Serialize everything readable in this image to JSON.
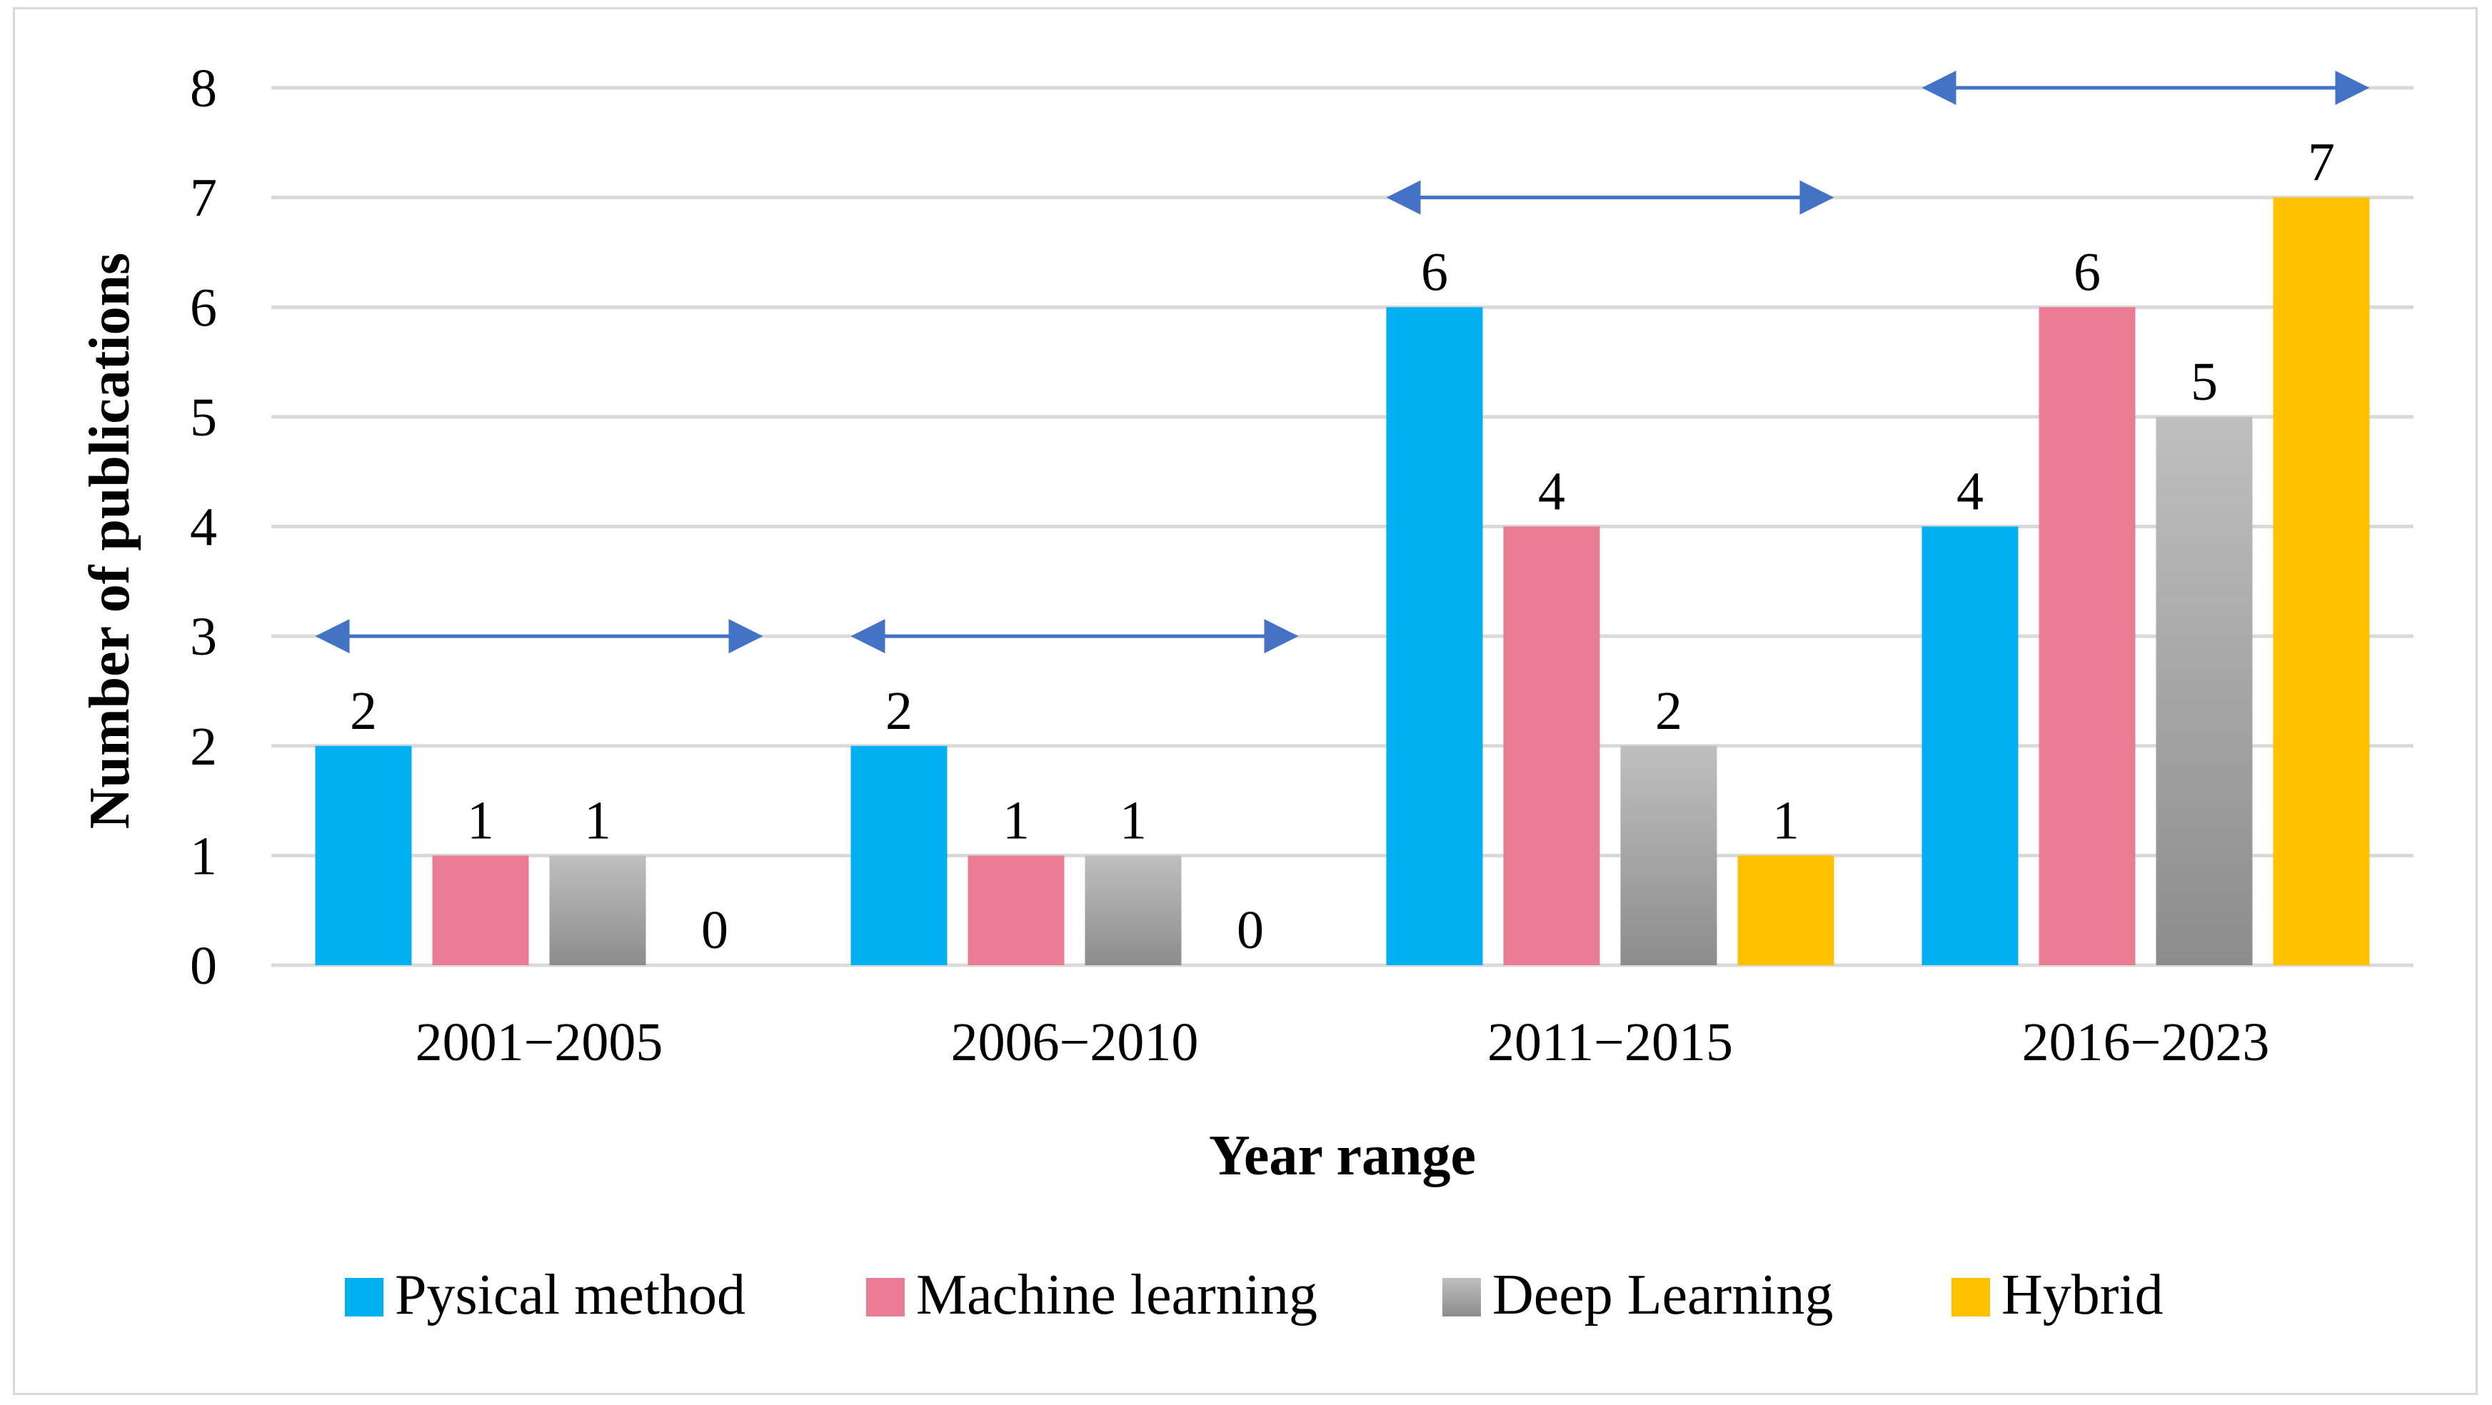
{
  "chart_data": {
    "type": "bar",
    "title": "",
    "xlabel": "Year range",
    "ylabel": "Number of publications",
    "ylim": [
      0,
      8
    ],
    "yticks": [
      "0",
      "1",
      "2",
      "3",
      "4",
      "5",
      "6",
      "7",
      "8"
    ],
    "grid": true,
    "legend_position": "bottom",
    "categories": [
      "2001−2005",
      "2006−2010",
      "2011−2015",
      "2016−2023"
    ],
    "series": [
      {
        "name": "Pysical method",
        "color": "#00B0F0",
        "values": [
          2,
          2,
          6,
          4
        ],
        "labels": [
          "2",
          "2",
          "6",
          "4"
        ]
      },
      {
        "name": "Machine learning",
        "color": "#E97B93",
        "values": [
          1,
          1,
          4,
          6
        ],
        "labels": [
          "1",
          "1",
          "4",
          "6"
        ]
      },
      {
        "name": "Deep Learning",
        "color": "#A6A6A6",
        "values": [
          1,
          1,
          2,
          5
        ],
        "labels": [
          "1",
          "1",
          "2",
          "5"
        ]
      },
      {
        "name": "Hybrid",
        "color": "#FFC000",
        "values": [
          0,
          0,
          1,
          7
        ],
        "labels": [
          "0",
          "0",
          "1",
          "7"
        ]
      }
    ],
    "annotations": [
      {
        "type": "double-arrow",
        "category": "2001−2005",
        "y": 3,
        "color": "#4472C4"
      },
      {
        "type": "double-arrow",
        "category": "2006−2010",
        "y": 3,
        "color": "#4472C4"
      },
      {
        "type": "double-arrow",
        "category": "2011−2015",
        "y": 7,
        "color": "#4472C4"
      },
      {
        "type": "double-arrow",
        "category": "2016−2023",
        "y": 8,
        "color": "#4472C4"
      }
    ],
    "colors": {
      "gridline": "#D9D9D9",
      "arrow": "#4472C4"
    }
  }
}
